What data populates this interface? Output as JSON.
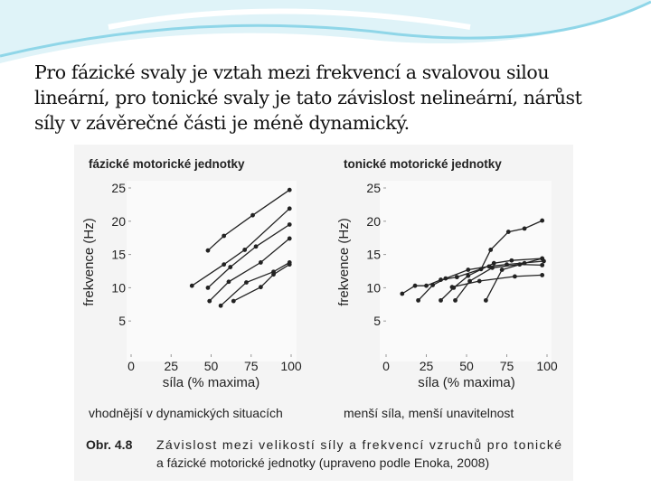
{
  "slide_text": [
    "Pro fázické svaly je vztah mezi frekvencí a svalovou silou",
    "lineární, pro tonické svaly je tato závislost nelineární, nárůst",
    "síly v závěrečné části je méně dynamický."
  ],
  "figure": {
    "left_note": "vhodnější v dynamických situacích",
    "right_note": "menší síla, menší unavitelnost",
    "caption_label": "Obr. 4.8",
    "caption_lines": [
      "Závislost mezi velikostí síly a frekvencí vzruchů pro tonické",
      "a fázické motorické jednotky (upraveno podle Enoka, 2008)"
    ]
  },
  "chart_data": [
    {
      "type": "line",
      "title": "fázické motorické jednotky",
      "x_label": "síla (% maxima)",
      "y_label": "frekvence (Hz)",
      "color": "#222222",
      "xlim": [
        0,
        100
      ],
      "ylim": [
        0,
        25
      ],
      "xticks": [
        0,
        25,
        50,
        75,
        100
      ],
      "yticks": [
        5,
        10,
        15,
        20,
        25
      ],
      "series": [
        {
          "x": [
            48,
            58,
            76,
            99
          ],
          "values": [
            15.6,
            17.8,
            20.9,
            24.7
          ]
        },
        {
          "x": [
            38,
            58,
            71,
            99
          ],
          "values": [
            10.3,
            13.5,
            15.7,
            21.9
          ]
        },
        {
          "x": [
            48,
            62,
            78,
            99
          ],
          "values": [
            10,
            13.1,
            16.2,
            19.5
          ]
        },
        {
          "x": [
            49,
            61,
            81,
            99
          ],
          "values": [
            8,
            10.9,
            13.8,
            17.4
          ]
        },
        {
          "x": [
            56,
            72,
            89,
            99
          ],
          "values": [
            7.3,
            10.8,
            12.4,
            13.8
          ]
        },
        {
          "x": [
            64,
            81,
            89,
            99
          ],
          "values": [
            8,
            10.1,
            12,
            13.5
          ]
        }
      ]
    },
    {
      "type": "line",
      "title": "tonické motorické jednotky",
      "x_label": "síla (% maxima)",
      "y_label": "frekvence (Hz)",
      "color": "#222222",
      "xlim": [
        0,
        100
      ],
      "ylim": [
        0,
        25
      ],
      "xticks": [
        0,
        25,
        50,
        75,
        100
      ],
      "yticks": [
        5,
        10,
        15,
        20,
        25
      ],
      "series": [
        {
          "x": [
            10,
            18,
            25,
            34,
            44,
            59,
            65,
            76,
            86,
            97
          ],
          "values": [
            9.1,
            10.3,
            10.3,
            11.2,
            11.6,
            12.8,
            15.7,
            18.4,
            18.9,
            20.1
          ]
        },
        {
          "x": [
            20,
            29,
            37,
            51,
            64,
            75,
            98
          ],
          "values": [
            8.1,
            10.4,
            11.4,
            12.7,
            13.2,
            13.5,
            14
          ]
        },
        {
          "x": [
            34,
            42,
            51,
            67,
            78,
            97
          ],
          "values": [
            8.1,
            10,
            11.8,
            13.7,
            14.1,
            14.4
          ]
        },
        {
          "x": [
            43,
            52,
            66,
            83,
            97
          ],
          "values": [
            8.1,
            11,
            13,
            13.5,
            13.4
          ]
        },
        {
          "x": [
            62,
            72,
            86,
            97
          ],
          "values": [
            8.1,
            12.7,
            13.7,
            14.4
          ]
        },
        {
          "x": [
            41,
            58,
            80,
            97
          ],
          "values": [
            10.1,
            11,
            11.7,
            11.9
          ]
        }
      ]
    }
  ]
}
